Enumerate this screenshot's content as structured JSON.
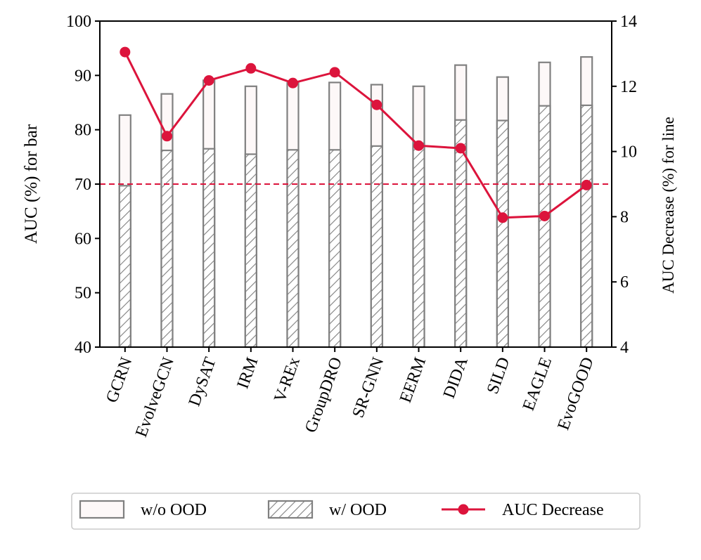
{
  "chart_data": {
    "type": "bar",
    "categories": [
      "GCRN",
      "EvolveGCN",
      "DySAT",
      "IRM",
      "V-REx",
      "GroupDRO",
      "SR-GNN",
      "EERM",
      "DIDA",
      "SILD",
      "EAGLE",
      "EvoGOOD"
    ],
    "series": [
      {
        "name": "w/o OOD",
        "axis": "left",
        "kind": "bar",
        "values": [
          82.7,
          86.6,
          89.1,
          88.0,
          88.6,
          88.7,
          88.3,
          88.0,
          91.9,
          89.7,
          92.4,
          93.4
        ]
      },
      {
        "name": "w/ OOD",
        "axis": "left",
        "kind": "bar",
        "hatch": true,
        "values": [
          69.7,
          76.2,
          76.5,
          75.5,
          76.3,
          76.3,
          77.0,
          77.5,
          81.8,
          81.7,
          84.4,
          84.5
        ]
      },
      {
        "name": "AUC Decrease",
        "axis": "right",
        "kind": "line",
        "values": [
          13.05,
          10.47,
          12.18,
          12.55,
          12.1,
          12.43,
          11.43,
          10.18,
          10.1,
          7.97,
          8.02,
          8.97
        ]
      }
    ],
    "ylabel": "AUC (%) for bar",
    "ylabel_right": "AUC Decrease (%) for line",
    "ylim": [
      40,
      100
    ],
    "ylim_right": [
      4,
      14
    ],
    "yticks": [
      "40",
      "50",
      "60",
      "70",
      "80",
      "90",
      "100"
    ],
    "yticks_right": [
      "4",
      "6",
      "8",
      "10",
      "12",
      "14"
    ],
    "reference_line": {
      "axis": "left",
      "value": 70,
      "style": "dashed"
    },
    "grid": false,
    "legend_placement": "bottom",
    "colors": {
      "bar_edge": "#808080",
      "bar_fill": "#fdf8f8",
      "line": "#dc143c",
      "ref_line": "#dc143c"
    }
  }
}
